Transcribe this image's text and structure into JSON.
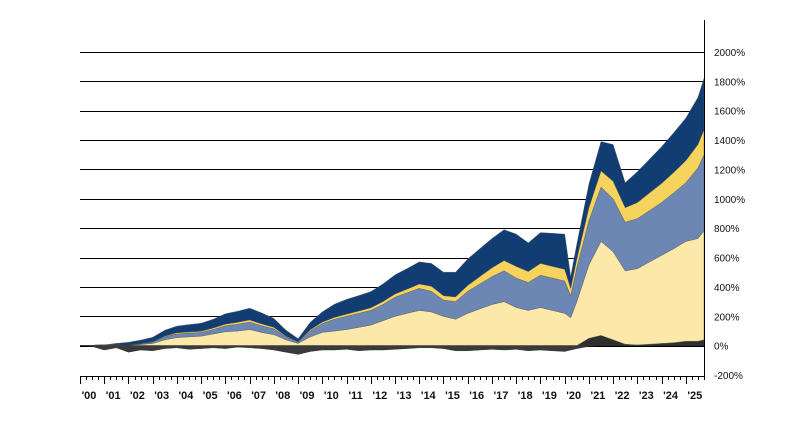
{
  "chart_data": {
    "type": "area",
    "stacked": true,
    "title": "",
    "xlabel": "",
    "ylabel": "",
    "x_range": [
      2000.0,
      2025.75
    ],
    "ylim": [
      -200,
      2200
    ],
    "y_axis_side": "right",
    "grid": "horizontal",
    "legend": "none",
    "y_ticks": [
      -200,
      0,
      200,
      400,
      600,
      800,
      1000,
      1200,
      1400,
      1600,
      1800,
      2000
    ],
    "y_tick_labels": [
      "-200%",
      "0%",
      "200%",
      "400%",
      "600%",
      "800%",
      "1000%",
      "1200%",
      "1400%",
      "1600%",
      "1800%",
      "2000%"
    ],
    "x_ticks": [
      2000,
      2001,
      2002,
      2003,
      2004,
      2005,
      2006,
      2007,
      2008,
      2009,
      2010,
      2011,
      2012,
      2013,
      2014,
      2015,
      2016,
      2017,
      2018,
      2019,
      2020,
      2021,
      2022,
      2023,
      2024,
      2025
    ],
    "x_tick_labels": [
      "'00",
      "'01",
      "'02",
      "'03",
      "'04",
      "'05",
      "'06",
      "'07",
      "'08",
      "'09",
      "'10",
      "'11",
      "'12",
      "'13",
      "'14",
      "'15",
      "'16",
      "'17",
      "'18",
      "'19",
      "'20",
      "'21",
      "'22",
      "'23",
      "'24",
      "'25"
    ],
    "x": [
      2000.0,
      2000.5,
      2001.0,
      2001.5,
      2002.0,
      2002.5,
      2003.0,
      2003.5,
      2004.0,
      2004.5,
      2005.0,
      2005.5,
      2006.0,
      2006.5,
      2007.0,
      2007.5,
      2008.0,
      2008.5,
      2009.0,
      2009.5,
      2010.0,
      2010.5,
      2011.0,
      2011.5,
      2012.0,
      2012.5,
      2013.0,
      2013.5,
      2014.0,
      2014.5,
      2015.0,
      2015.5,
      2016.0,
      2016.5,
      2017.0,
      2017.5,
      2018.0,
      2018.5,
      2019.0,
      2019.5,
      2020.0,
      2020.25,
      2020.5,
      2021.0,
      2021.5,
      2022.0,
      2022.5,
      2023.0,
      2023.5,
      2024.0,
      2024.5,
      2025.0,
      2025.5,
      2025.75
    ],
    "negative_series": {
      "color": "#3a3a3a",
      "values": [
        0,
        -5,
        -30,
        -15,
        -45,
        -30,
        -35,
        -20,
        -15,
        -25,
        -20,
        -15,
        -20,
        -10,
        -15,
        -20,
        -30,
        -45,
        -60,
        -40,
        -30,
        -30,
        -25,
        -35,
        -30,
        -30,
        -25,
        -20,
        -15,
        -15,
        -20,
        -35,
        -35,
        -30,
        -25,
        -30,
        -25,
        -35,
        -30,
        -35,
        -40,
        -30,
        -20,
        -5,
        0,
        0,
        0,
        0,
        0,
        0,
        0,
        0,
        0,
        0
      ]
    },
    "series": [
      {
        "color": "#2e2e2e",
        "values": [
          0,
          0,
          0,
          0,
          0,
          0,
          0,
          0,
          0,
          0,
          0,
          0,
          0,
          0,
          0,
          0,
          0,
          0,
          0,
          0,
          0,
          0,
          0,
          0,
          0,
          0,
          0,
          0,
          0,
          0,
          0,
          0,
          0,
          0,
          0,
          0,
          0,
          0,
          0,
          0,
          0,
          0,
          0,
          50,
          70,
          40,
          10,
          5,
          10,
          15,
          20,
          30,
          30,
          40
        ]
      },
      {
        "color": "#fce8a8",
        "values": [
          0,
          2,
          5,
          5,
          3,
          8,
          15,
          40,
          55,
          60,
          65,
          80,
          95,
          100,
          110,
          90,
          75,
          40,
          15,
          60,
          90,
          100,
          110,
          125,
          140,
          170,
          200,
          220,
          240,
          230,
          200,
          180,
          220,
          250,
          280,
          300,
          260,
          240,
          260,
          240,
          220,
          190,
          300,
          500,
          640,
          600,
          500,
          520,
          560,
          600,
          640,
          680,
          700,
          740
        ]
      },
      {
        "color": "#6d87b5",
        "values": [
          0,
          0,
          0,
          0,
          0,
          5,
          10,
          20,
          25,
          25,
          25,
          30,
          40,
          45,
          50,
          45,
          40,
          20,
          10,
          40,
          60,
          80,
          90,
          95,
          100,
          110,
          130,
          140,
          150,
          140,
          110,
          120,
          150,
          170,
          190,
          210,
          200,
          190,
          220,
          220,
          220,
          150,
          230,
          300,
          370,
          360,
          330,
          340,
          350,
          360,
          380,
          400,
          480,
          520
        ]
      },
      {
        "color": "#f5d35c",
        "values": [
          0,
          0,
          0,
          0,
          0,
          0,
          2,
          5,
          8,
          8,
          8,
          10,
          12,
          14,
          15,
          13,
          10,
          5,
          2,
          8,
          10,
          12,
          15,
          16,
          18,
          20,
          22,
          25,
          30,
          35,
          30,
          32,
          40,
          50,
          60,
          70,
          80,
          75,
          80,
          80,
          80,
          50,
          60,
          90,
          110,
          120,
          100,
          110,
          120,
          130,
          140,
          150,
          160,
          170
        ]
      },
      {
        "color": "#113d72",
        "values": [
          0,
          0,
          0,
          10,
          20,
          25,
          30,
          40,
          45,
          50,
          55,
          60,
          70,
          75,
          80,
          75,
          60,
          40,
          20,
          50,
          70,
          90,
          100,
          105,
          110,
          120,
          130,
          140,
          150,
          155,
          160,
          168,
          180,
          190,
          200,
          210,
          220,
          195,
          210,
          225,
          240,
          80,
          100,
          160,
          200,
          250,
          170,
          210,
          230,
          250,
          270,
          290,
          320,
          350
        ]
      }
    ]
  }
}
